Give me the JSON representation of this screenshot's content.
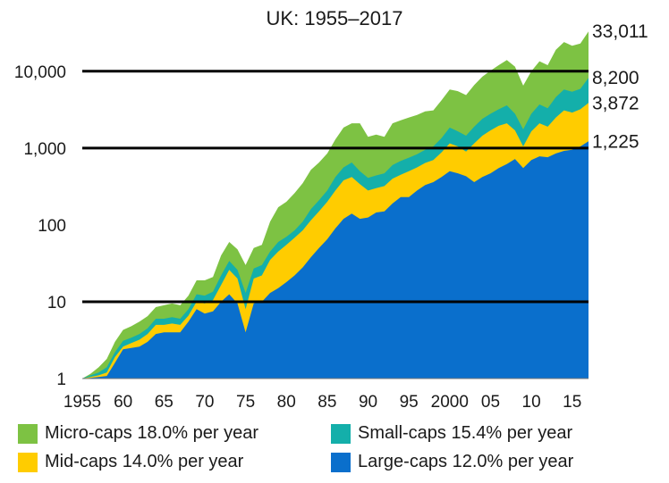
{
  "chart_data": {
    "type": "area",
    "title": "UK: 1955–2017",
    "y_scale": "log",
    "ylim": [
      1,
      40000
    ],
    "xlim": [
      1955,
      2017
    ],
    "y_ticks": [
      1,
      10,
      100,
      1000,
      10000
    ],
    "y_tick_labels": [
      "1",
      "10",
      "100",
      "1,000",
      "10,000"
    ],
    "x_ticks": [
      1955,
      1960,
      1965,
      1970,
      1975,
      1980,
      1985,
      1990,
      1995,
      2000,
      2005,
      2010,
      2015
    ],
    "x_tick_labels": [
      "1955",
      "60",
      "65",
      "70",
      "75",
      "80",
      "85",
      "90",
      "95",
      "2000",
      "05",
      "10",
      "15"
    ],
    "grid": "horizontal at 10, 1,000, 10,000",
    "legend_position": "bottom",
    "x": [
      1955,
      1956,
      1957,
      1958,
      1959,
      1960,
      1961,
      1962,
      1963,
      1964,
      1965,
      1966,
      1967,
      1968,
      1969,
      1970,
      1971,
      1972,
      1973,
      1974,
      1975,
      1976,
      1977,
      1978,
      1979,
      1980,
      1981,
      1982,
      1983,
      1984,
      1985,
      1986,
      1987,
      1988,
      1989,
      1990,
      1991,
      1992,
      1993,
      1994,
      1995,
      1996,
      1997,
      1998,
      1999,
      2000,
      2001,
      2002,
      2003,
      2004,
      2005,
      2006,
      2007,
      2008,
      2009,
      2010,
      2011,
      2012,
      2013,
      2014,
      2015,
      2016,
      2017
    ],
    "series": [
      {
        "name": "Micro-caps 18.0% per year",
        "color": "#7dc243",
        "end_label": "33,011",
        "values": [
          1,
          1.15,
          1.4,
          1.8,
          3,
          4.3,
          4.8,
          5.5,
          6.5,
          8.5,
          9,
          9.5,
          9,
          12,
          19,
          19,
          21,
          40,
          60,
          48,
          30,
          50,
          55,
          110,
          170,
          200,
          260,
          350,
          520,
          650,
          850,
          1300,
          1850,
          2100,
          2100,
          1400,
          1500,
          1400,
          2100,
          2300,
          2500,
          2700,
          3000,
          3100,
          4200,
          5800,
          5500,
          4900,
          6600,
          8500,
          10200,
          12000,
          14000,
          11500,
          6500,
          10000,
          13500,
          12000,
          19000,
          24000,
          21500,
          23000,
          33011
        ]
      },
      {
        "name": "Small-caps 15.4% per year",
        "color": "#14afaa",
        "end_label": "8,200",
        "values": [
          1,
          1.1,
          1.2,
          1.4,
          2.2,
          3.1,
          3.4,
          3.8,
          4.5,
          6,
          6,
          6.3,
          6,
          8,
          12.5,
          12,
          13.5,
          22,
          34,
          26,
          13,
          27,
          30,
          45,
          60,
          70,
          85,
          110,
          160,
          210,
          280,
          420,
          560,
          650,
          500,
          410,
          440,
          470,
          600,
          680,
          750,
          830,
          950,
          1050,
          1350,
          1850,
          1650,
          1450,
          1900,
          2400,
          2800,
          3200,
          3600,
          2800,
          1750,
          2800,
          3700,
          3300,
          4600,
          5800,
          5400,
          5900,
          8200
        ]
      },
      {
        "name": "Mid-caps 14.0% per year",
        "color": "#ffcc00",
        "end_label": "3,872",
        "values": [
          1,
          1.05,
          1.1,
          1.2,
          1.9,
          2.6,
          2.9,
          3.2,
          3.8,
          5,
          5,
          5.2,
          5,
          6.6,
          10,
          9.5,
          10.5,
          16.5,
          26,
          20,
          8,
          20,
          22,
          35,
          45,
          55,
          68,
          85,
          115,
          150,
          200,
          280,
          380,
          420,
          340,
          280,
          300,
          320,
          400,
          450,
          500,
          560,
          640,
          700,
          880,
          1150,
          1050,
          900,
          1150,
          1450,
          1700,
          1950,
          2100,
          1700,
          1050,
          1650,
          2100,
          1900,
          2500,
          3100,
          2900,
          3200,
          3872
        ]
      },
      {
        "name": "Large-caps 12.0% per year",
        "color": "#0a6fcc",
        "end_label": "1,225",
        "values": [
          1,
          1.02,
          1.05,
          1.08,
          1.6,
          2.4,
          2.5,
          2.6,
          3,
          3.8,
          4,
          4,
          4,
          5.5,
          8,
          7,
          7.5,
          10,
          12.5,
          9.5,
          4,
          9.5,
          10,
          13,
          15,
          18,
          22,
          28,
          38,
          50,
          65,
          90,
          120,
          140,
          120,
          125,
          145,
          150,
          190,
          230,
          230,
          280,
          330,
          360,
          420,
          500,
          470,
          430,
          360,
          420,
          470,
          550,
          620,
          720,
          550,
          700,
          780,
          760,
          850,
          920,
          950,
          1050,
          1225
        ]
      }
    ]
  }
}
